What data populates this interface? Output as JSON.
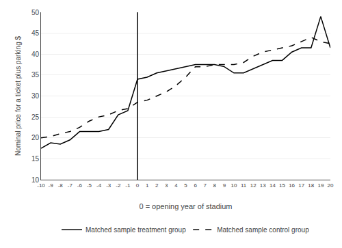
{
  "chart_data": {
    "type": "line",
    "xlabel": "0 = opening year of stadium",
    "ylabel": "Nominal price for a ticket plus parking $",
    "x": [
      -10,
      -9,
      -8,
      -7,
      -6,
      -5,
      -4,
      -3,
      -2,
      -1,
      0,
      1,
      2,
      3,
      4,
      5,
      6,
      7,
      8,
      9,
      10,
      11,
      12,
      13,
      14,
      15,
      16,
      17,
      18,
      19,
      20
    ],
    "series": [
      {
        "name": "Matched sample treatment group",
        "color": "#000000",
        "line_style": "solid",
        "values": [
          17.5,
          18.8,
          18.5,
          19.5,
          21.5,
          21.5,
          21.5,
          22.0,
          25.5,
          26.5,
          34.0,
          34.5,
          35.5,
          36.0,
          36.5,
          37.0,
          37.5,
          37.5,
          37.5,
          37.0,
          35.5,
          35.5,
          36.5,
          37.5,
          38.5,
          38.5,
          40.5,
          41.5,
          41.5,
          49.0,
          41.5
        ]
      },
      {
        "name": "Matched sample control group",
        "color": "#000000",
        "line_style": "dashed",
        "values": [
          20.0,
          20.3,
          21.0,
          21.5,
          22.5,
          24.0,
          25.0,
          25.5,
          26.5,
          27.0,
          28.5,
          29.0,
          30.0,
          31.0,
          32.5,
          34.5,
          37.0,
          37.0,
          37.5,
          37.5,
          37.5,
          38.0,
          39.5,
          40.5,
          41.0,
          41.5,
          42.0,
          43.0,
          44.0,
          43.0,
          42.5
        ]
      }
    ],
    "vline_x": 0,
    "vline_color": "#000000",
    "xlim": [
      -10,
      20
    ],
    "xticks": [
      -10,
      -9,
      -8,
      -7,
      -6,
      -5,
      -4,
      -3,
      -2,
      -1,
      0,
      1,
      2,
      3,
      4,
      5,
      6,
      7,
      8,
      9,
      10,
      11,
      12,
      13,
      14,
      15,
      16,
      17,
      18,
      19,
      20
    ],
    "ylim": [
      10,
      50
    ],
    "yticks": [
      10,
      15,
      20,
      25,
      30,
      35,
      40,
      45,
      50
    ],
    "grid": "y",
    "legend": "bottom"
  }
}
